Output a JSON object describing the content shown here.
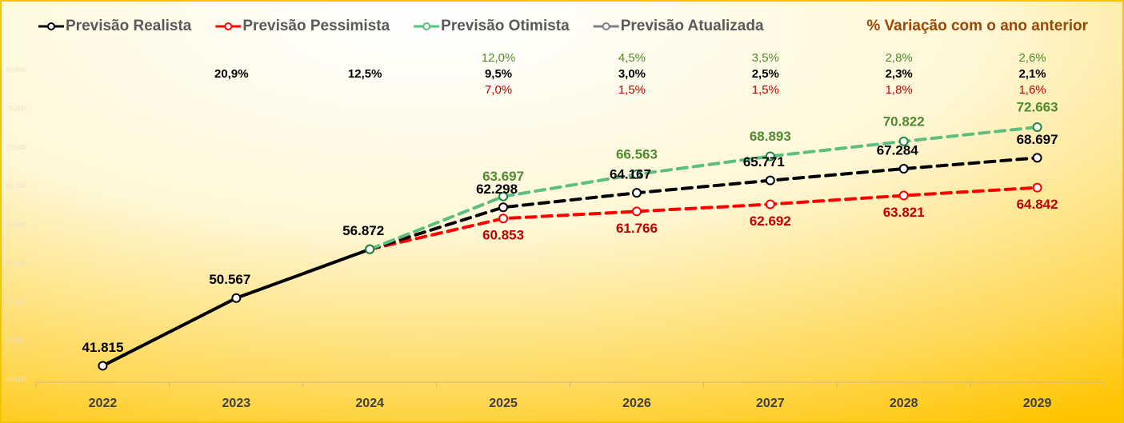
{
  "chart_data": {
    "type": "line",
    "categories": [
      "2022",
      "2023",
      "2024",
      "2025",
      "2026",
      "2027",
      "2028",
      "2029"
    ],
    "ylim": [
      40000,
      80000
    ],
    "yticks": [
      {
        "value": 40000,
        "label": "40.000"
      },
      {
        "value": 45000,
        "label": "45.000"
      },
      {
        "value": 50000,
        "label": "50.000"
      },
      {
        "value": 55000,
        "label": "55.000"
      },
      {
        "value": 60000,
        "label": "60.000"
      },
      {
        "value": 65000,
        "label": "65.000"
      },
      {
        "value": 70000,
        "label": "70.000"
      },
      {
        "value": 75000,
        "label": "75.000"
      },
      {
        "value": 80000,
        "label": "80.000"
      }
    ],
    "grid": false,
    "series": [
      {
        "name": "Previsão Realista",
        "color": "#000000",
        "label_color": "#000000",
        "values": [
          41815,
          50567,
          56872,
          62298,
          64167,
          65771,
          67284,
          68697
        ],
        "value_labels": [
          "41.815",
          "50.567",
          "56.872",
          "62.298",
          "64.167",
          "65.771",
          "67.284",
          "68.697"
        ]
      },
      {
        "name": "Previsão Pessimista",
        "color": "#ff0000",
        "label_color": "#c00000",
        "values": [
          null,
          null,
          56872,
          60853,
          61766,
          62692,
          63821,
          64842
        ],
        "value_labels": [
          null,
          null,
          null,
          "60.853",
          "61.766",
          "62.692",
          "63.821",
          "64.842"
        ]
      },
      {
        "name": "Previsão Otimista",
        "color": "#5cbf7f",
        "label_color": "#4f8a2f",
        "values": [
          null,
          null,
          56872,
          63697,
          66563,
          68893,
          70822,
          72663
        ],
        "value_labels": [
          null,
          null,
          null,
          "63.697",
          "66.563",
          "68.893",
          "70.822",
          "72.663"
        ]
      },
      {
        "name": "Previsão Atualizada",
        "color": "#808080",
        "label_color": "#808080",
        "values": [
          null,
          null,
          null,
          null,
          null,
          null,
          null,
          null
        ],
        "value_labels": [
          null,
          null,
          null,
          null,
          null,
          null,
          null,
          null
        ]
      }
    ],
    "variation": {
      "title": "% Variação com o ano anterior",
      "color": "#984807",
      "rows": [
        {
          "color": "#4f8a2f",
          "labels": [
            null,
            null,
            null,
            "12,0%",
            "4,5%",
            "3,5%",
            "2,8%",
            "2,6%"
          ]
        },
        {
          "color": "#000000",
          "labels": [
            null,
            "20,9%",
            "12,5%",
            "9,5%",
            "3,0%",
            "2,5%",
            "2,3%",
            "2,1%"
          ]
        },
        {
          "color": "#c00000",
          "labels": [
            null,
            null,
            null,
            "7,0%",
            "1,5%",
            "1,5%",
            "1,8%",
            "1,6%"
          ]
        }
      ]
    }
  }
}
